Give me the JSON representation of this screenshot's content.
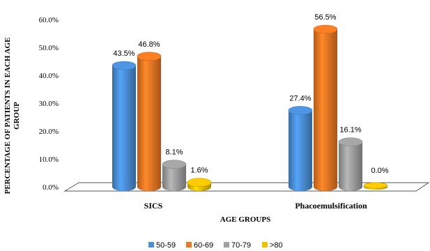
{
  "chart_data": {
    "type": "bar",
    "categories": [
      "SICS",
      "Phacoemulsification"
    ],
    "series": [
      {
        "name": "50-59",
        "values": [
          43.5,
          27.4
        ],
        "labels": [
          "43.5%",
          "27.4%"
        ]
      },
      {
        "name": "60-69",
        "values": [
          46.8,
          56.5
        ],
        "labels": [
          "46.8%",
          "56.5%"
        ]
      },
      {
        "name": "70-79",
        "values": [
          8.1,
          16.1
        ],
        "labels": [
          "8.1%",
          "16.1%"
        ]
      },
      {
        "name": ">80",
        "values": [
          1.6,
          0.0
        ],
        "labels": [
          "1.6%",
          "0.0%"
        ]
      }
    ],
    "xlabel": "AGE GROUPS",
    "ylabel_lines": [
      "PERCENTAGE OF PATIENTS IN EACH AGE",
      "GROUP"
    ],
    "ylim": [
      0,
      60
    ],
    "yticks": [
      "0.0%",
      "10.0%",
      "20.0%",
      "30.0%",
      "40.0%",
      "50.0%",
      "60.0%"
    ],
    "grid": false,
    "legend_position": "bottom",
    "colors": {
      "50-59": "#4A8FD8",
      "60-69": "#F07823",
      "70-79": "#A0A0A0",
      ">80": "#F2C200"
    }
  }
}
